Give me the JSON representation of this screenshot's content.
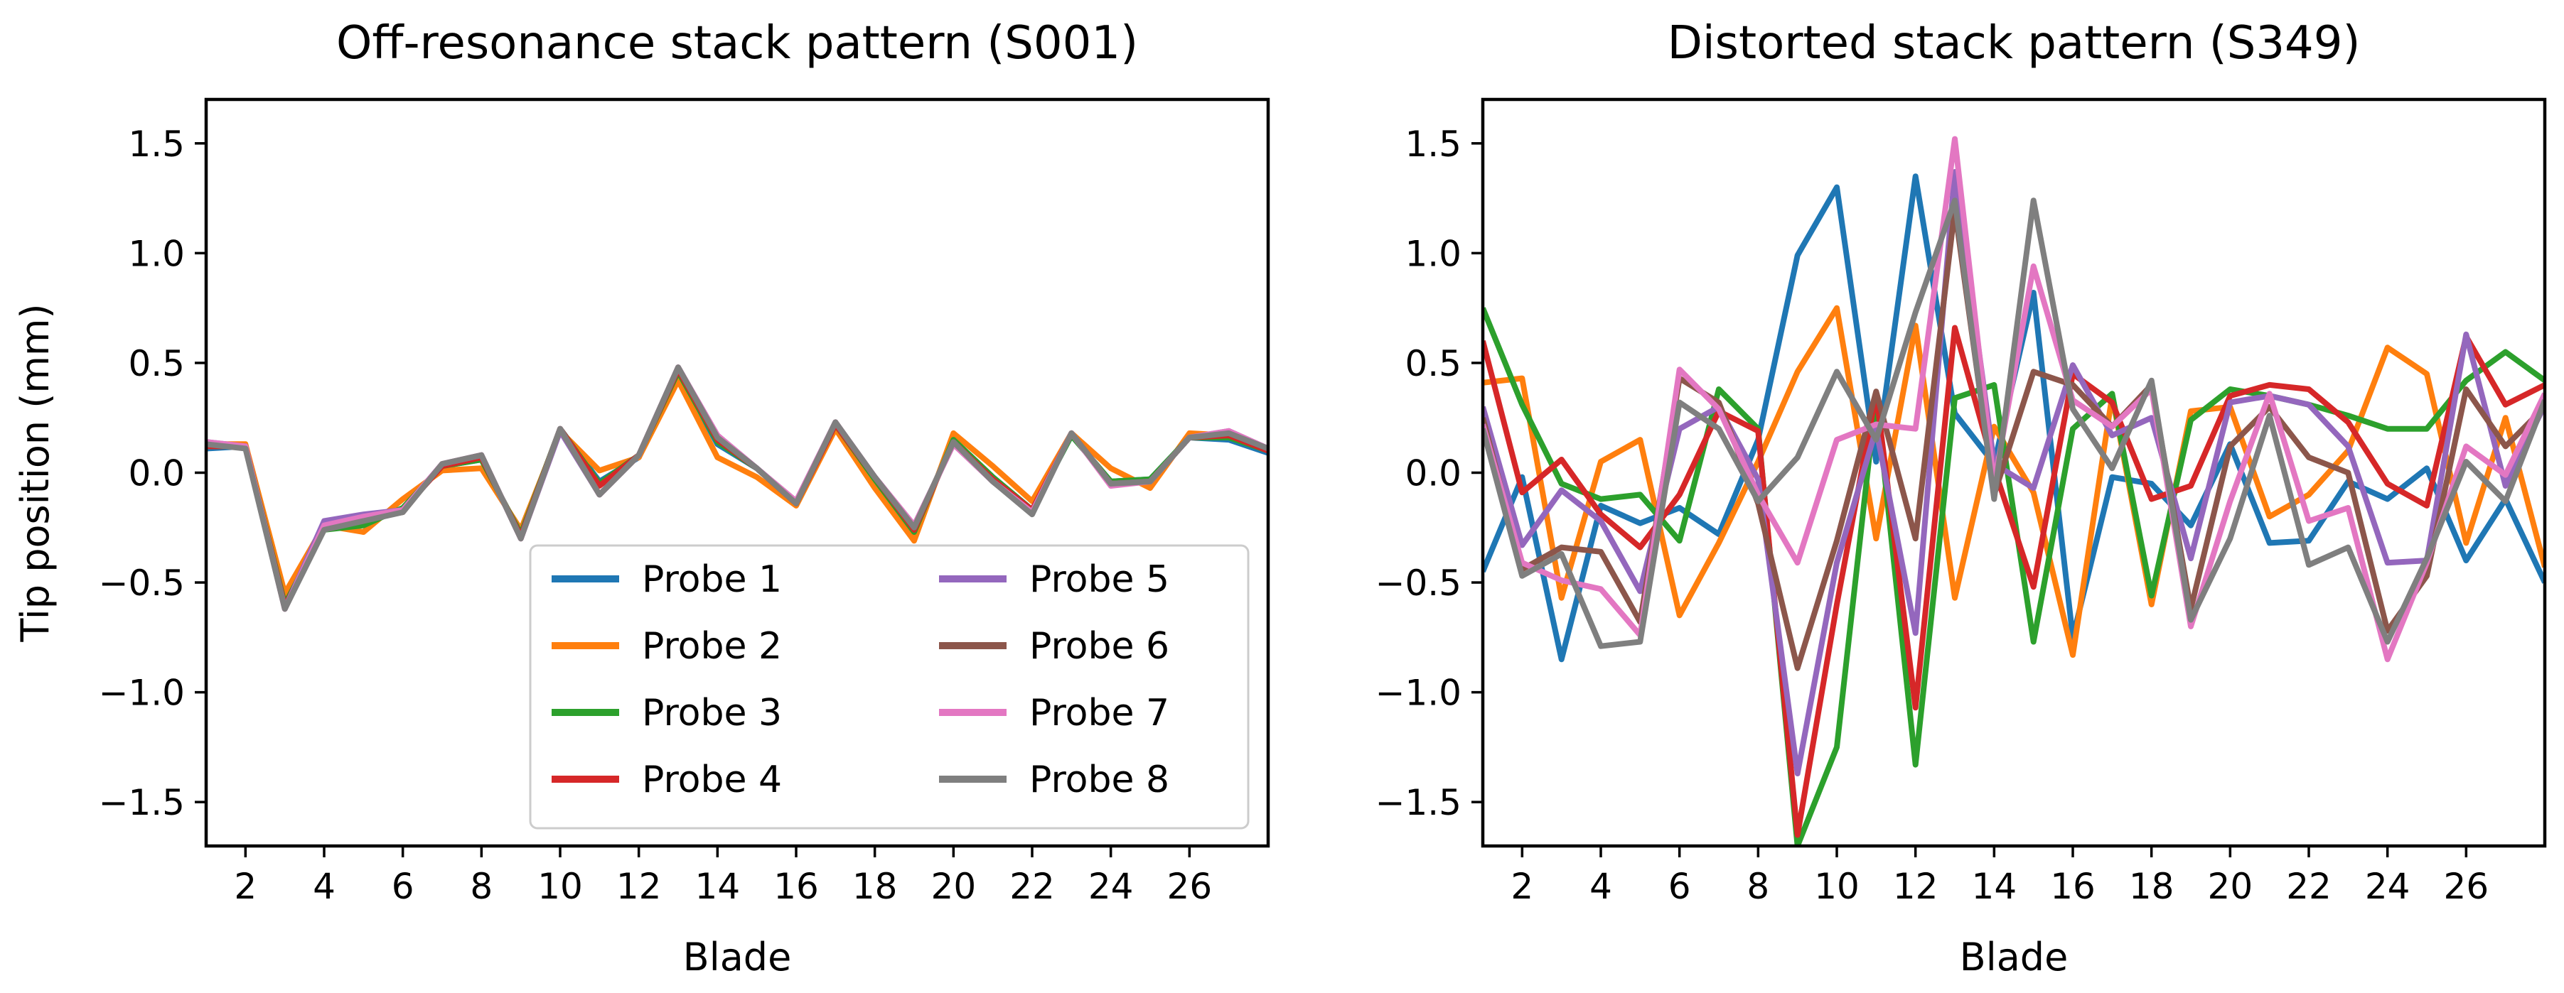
{
  "chart_data": [
    {
      "type": "line",
      "title": "Off-resonance stack pattern (S001)",
      "xlabel": "Blade",
      "ylabel": "Tip position (mm)",
      "xlim": [
        1,
        28
      ],
      "ylim": [
        -1.7,
        1.7
      ],
      "xticks": [
        2,
        4,
        6,
        8,
        10,
        12,
        14,
        16,
        18,
        20,
        22,
        24,
        26
      ],
      "yticks": [
        -1.5,
        -1.0,
        -0.5,
        0.0,
        0.5,
        1.0,
        1.5
      ],
      "ytick_labels": [
        "−1.5",
        "−1.0",
        "−0.5",
        "0.0",
        "0.5",
        "1.0",
        "1.5"
      ],
      "x": [
        1,
        2,
        3,
        4,
        5,
        6,
        7,
        8,
        9,
        10,
        11,
        12,
        13,
        14,
        15,
        16,
        17,
        18,
        19,
        20,
        21,
        22,
        23,
        24,
        25,
        26,
        27,
        28
      ],
      "legend": {
        "location": "lower-right",
        "columns": 2
      },
      "series": [
        {
          "name": "Probe 1",
          "color": "#1f77b4",
          "values": [
            0.11,
            0.12,
            -0.58,
            -0.25,
            -0.22,
            -0.17,
            0.03,
            0.06,
            -0.28,
            0.2,
            -0.04,
            0.07,
            0.46,
            0.13,
            0.02,
            -0.14,
            0.22,
            -0.03,
            -0.27,
            0.15,
            -0.02,
            -0.17,
            0.17,
            -0.04,
            -0.03,
            0.16,
            0.15,
            0.09
          ]
        },
        {
          "name": "Probe 2",
          "color": "#ff7f0e",
          "values": [
            0.13,
            0.13,
            -0.55,
            -0.24,
            -0.27,
            -0.12,
            0.01,
            0.02,
            -0.26,
            0.19,
            0.01,
            0.07,
            0.42,
            0.07,
            -0.02,
            -0.15,
            0.2,
            -0.07,
            -0.31,
            0.18,
            0.03,
            -0.13,
            0.18,
            0.02,
            -0.07,
            0.18,
            0.17,
            0.11
          ]
        },
        {
          "name": "Probe 3",
          "color": "#2ca02c",
          "values": [
            0.12,
            0.12,
            -0.6,
            -0.26,
            -0.24,
            -0.16,
            0.03,
            0.06,
            -0.28,
            0.2,
            -0.05,
            0.08,
            0.46,
            0.14,
            0.02,
            -0.14,
            0.22,
            -0.03,
            -0.27,
            0.15,
            -0.02,
            -0.17,
            0.17,
            -0.04,
            -0.03,
            0.16,
            0.16,
            0.1
          ]
        },
        {
          "name": "Probe 4",
          "color": "#d62728",
          "values": [
            0.12,
            0.12,
            -0.61,
            -0.25,
            -0.22,
            -0.17,
            0.03,
            0.07,
            -0.29,
            0.2,
            -0.06,
            0.08,
            0.47,
            0.15,
            0.02,
            -0.14,
            0.22,
            -0.02,
            -0.26,
            0.14,
            -0.03,
            -0.17,
            0.18,
            -0.05,
            -0.04,
            0.16,
            0.17,
            0.1
          ]
        },
        {
          "name": "Probe 5",
          "color": "#9467bd",
          "values": [
            0.14,
            0.12,
            -0.62,
            -0.22,
            -0.19,
            -0.17,
            0.04,
            0.08,
            -0.3,
            0.19,
            -0.1,
            0.08,
            0.48,
            0.17,
            0.02,
            -0.13,
            0.23,
            -0.02,
            -0.24,
            0.13,
            -0.04,
            -0.18,
            0.18,
            -0.05,
            -0.04,
            0.16,
            0.19,
            0.11
          ]
        },
        {
          "name": "Probe 6",
          "color": "#8c564b",
          "values": [
            0.13,
            0.12,
            -0.62,
            -0.25,
            -0.21,
            -0.18,
            0.04,
            0.08,
            -0.3,
            0.2,
            -0.1,
            0.08,
            0.48,
            0.16,
            0.02,
            -0.14,
            0.23,
            -0.02,
            -0.25,
            0.14,
            -0.04,
            -0.18,
            0.18,
            -0.05,
            -0.04,
            0.16,
            0.18,
            0.11
          ]
        },
        {
          "name": "Probe 7",
          "color": "#e377c2",
          "values": [
            0.14,
            0.12,
            -0.62,
            -0.24,
            -0.2,
            -0.17,
            0.04,
            0.08,
            -0.3,
            0.2,
            -0.1,
            0.08,
            0.48,
            0.17,
            0.02,
            -0.13,
            0.23,
            -0.02,
            -0.24,
            0.13,
            -0.04,
            -0.18,
            0.18,
            -0.06,
            -0.04,
            0.16,
            0.19,
            0.11
          ]
        },
        {
          "name": "Probe 8",
          "color": "#7f7f7f",
          "values": [
            0.13,
            0.11,
            -0.62,
            -0.26,
            -0.22,
            -0.18,
            0.04,
            0.08,
            -0.3,
            0.2,
            -0.1,
            0.08,
            0.48,
            0.16,
            0.02,
            -0.14,
            0.23,
            -0.02,
            -0.25,
            0.14,
            -0.04,
            -0.19,
            0.18,
            -0.05,
            -0.04,
            0.16,
            0.18,
            0.11
          ]
        }
      ]
    },
    {
      "type": "line",
      "title": "Distorted stack pattern (S349)",
      "xlabel": "Blade",
      "ylabel": "",
      "xlim": [
        1,
        28
      ],
      "ylim": [
        -1.7,
        1.7
      ],
      "xticks": [
        2,
        4,
        6,
        8,
        10,
        12,
        14,
        16,
        18,
        20,
        22,
        24,
        26
      ],
      "yticks": [
        -1.5,
        -1.0,
        -0.5,
        0.0,
        0.5,
        1.0,
        1.5
      ],
      "ytick_labels": [
        "−1.5",
        "−1.0",
        "−0.5",
        "0.0",
        "0.5",
        "1.0",
        "1.5"
      ],
      "x": [
        1,
        2,
        3,
        4,
        5,
        6,
        7,
        8,
        9,
        10,
        11,
        12,
        13,
        14,
        15,
        16,
        17,
        18,
        19,
        20,
        21,
        22,
        23,
        24,
        25,
        26,
        27,
        28
      ],
      "series": [
        {
          "name": "Probe 1",
          "color": "#1f77b4",
          "values": [
            -0.45,
            -0.02,
            -0.85,
            -0.15,
            -0.23,
            -0.16,
            -0.28,
            0.15,
            0.99,
            1.3,
            0.05,
            1.35,
            0.27,
            0.04,
            0.82,
            -0.75,
            -0.02,
            -0.05,
            -0.24,
            0.13,
            -0.32,
            -0.31,
            -0.04,
            -0.12,
            0.02,
            -0.4,
            -0.12,
            -0.5
          ]
        },
        {
          "name": "Probe 2",
          "color": "#ff7f0e",
          "values": [
            0.41,
            0.43,
            -0.57,
            0.05,
            0.15,
            -0.65,
            -0.32,
            0.05,
            0.46,
            0.75,
            -0.3,
            0.67,
            -0.57,
            0.21,
            -0.09,
            -0.83,
            0.35,
            -0.6,
            0.28,
            0.3,
            -0.2,
            -0.1,
            0.1,
            0.57,
            0.45,
            -0.32,
            0.25,
            -0.43
          ]
        },
        {
          "name": "Probe 3",
          "color": "#2ca02c",
          "values": [
            0.75,
            0.31,
            -0.05,
            -0.12,
            -0.1,
            -0.31,
            0.38,
            0.2,
            -1.7,
            -1.25,
            0.35,
            -1.33,
            0.34,
            0.4,
            -0.77,
            0.2,
            0.36,
            -0.56,
            0.24,
            0.38,
            0.35,
            0.31,
            0.26,
            0.2,
            0.2,
            0.42,
            0.55,
            0.42
          ]
        },
        {
          "name": "Probe 4",
          "color": "#d62728",
          "values": [
            0.6,
            -0.09,
            0.06,
            -0.19,
            -0.34,
            -0.1,
            0.28,
            0.19,
            -1.65,
            -0.6,
            0.36,
            -1.07,
            0.66,
            0.02,
            -0.52,
            0.45,
            0.32,
            -0.12,
            -0.06,
            0.35,
            0.4,
            0.38,
            0.23,
            -0.05,
            -0.15,
            0.62,
            0.31,
            0.4
          ]
        },
        {
          "name": "Probe 5",
          "color": "#9467bd",
          "values": [
            0.3,
            -0.33,
            -0.08,
            -0.22,
            -0.54,
            0.2,
            0.3,
            -0.03,
            -1.37,
            -0.41,
            0.2,
            -0.73,
            1.37,
            0.04,
            -0.07,
            0.49,
            0.17,
            0.25,
            -0.39,
            0.32,
            0.35,
            0.31,
            0.12,
            -0.41,
            -0.4,
            0.63,
            -0.06,
            0.31
          ]
        },
        {
          "name": "Probe 6",
          "color": "#8c564b",
          "values": [
            0.25,
            -0.44,
            -0.34,
            -0.36,
            -0.68,
            0.43,
            0.32,
            -0.14,
            -0.89,
            -0.31,
            0.37,
            -0.3,
            1.2,
            -0.1,
            0.46,
            0.4,
            0.21,
            0.4,
            -0.62,
            0.12,
            0.3,
            0.07,
            0.0,
            -0.72,
            -0.47,
            0.38,
            0.12,
            0.3
          ]
        },
        {
          "name": "Probe 7",
          "color": "#e377c2",
          "values": [
            0.22,
            -0.41,
            -0.49,
            -0.53,
            -0.74,
            0.47,
            0.29,
            -0.1,
            -0.41,
            0.15,
            0.22,
            0.2,
            1.52,
            -0.05,
            0.94,
            0.33,
            0.21,
            0.38,
            -0.7,
            -0.13,
            0.36,
            -0.22,
            -0.16,
            -0.85,
            -0.41,
            0.12,
            -0.01,
            0.36
          ]
        },
        {
          "name": "Probe 8",
          "color": "#7f7f7f",
          "values": [
            0.2,
            -0.47,
            -0.37,
            -0.79,
            -0.77,
            0.32,
            0.2,
            -0.13,
            0.07,
            0.46,
            0.15,
            0.73,
            1.24,
            -0.12,
            1.24,
            0.29,
            0.02,
            0.42,
            -0.67,
            -0.3,
            0.26,
            -0.42,
            -0.34,
            -0.77,
            -0.39,
            0.05,
            -0.13,
            0.33
          ]
        }
      ]
    }
  ]
}
